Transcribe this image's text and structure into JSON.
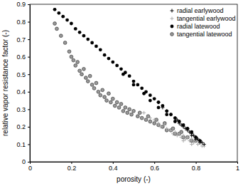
{
  "chart_data": {
    "type": "scatter",
    "x_label": "porosity (-)",
    "y_label": "relative vapor resistance factor (-)",
    "xlim": [
      0,
      1
    ],
    "xticks": [
      0,
      0.2,
      0.4,
      0.6,
      0.8,
      1
    ],
    "ylim": [
      0,
      0.9
    ],
    "yticks": [
      0,
      0.1,
      0.2,
      0.3,
      0.4,
      0.5,
      0.6,
      0.7,
      0.8,
      0.9
    ],
    "grid": false,
    "legend": "upper right",
    "series": [
      {
        "name": "radial earlywood",
        "color": "#000000",
        "marker": "plus",
        "x": [
          0.62,
          0.64,
          0.66,
          0.68,
          0.7,
          0.71,
          0.72,
          0.73,
          0.74,
          0.75,
          0.76,
          0.77,
          0.78,
          0.79,
          0.8,
          0.81,
          0.82,
          0.83,
          0.84,
          0.76,
          0.78,
          0.8,
          0.82
        ],
        "values": [
          0.34,
          0.31,
          0.29,
          0.27,
          0.25,
          0.24,
          0.22,
          0.21,
          0.2,
          0.19,
          0.18,
          0.17,
          0.16,
          0.15,
          0.14,
          0.13,
          0.12,
          0.11,
          0.1,
          0.19,
          0.15,
          0.13,
          0.11
        ]
      },
      {
        "name": "tangential earlywood",
        "color": "#aaaaaa",
        "marker": "plus",
        "x": [
          0.55,
          0.58,
          0.6,
          0.62,
          0.63,
          0.65,
          0.66,
          0.68,
          0.69,
          0.7,
          0.71,
          0.72,
          0.73,
          0.74,
          0.75,
          0.76,
          0.77,
          0.78,
          0.79,
          0.8,
          0.81,
          0.82,
          0.83,
          0.84,
          0.74,
          0.78
        ],
        "values": [
          0.28,
          0.25,
          0.24,
          0.22,
          0.2,
          0.21,
          0.19,
          0.18,
          0.16,
          0.17,
          0.15,
          0.16,
          0.14,
          0.15,
          0.13,
          0.14,
          0.12,
          0.13,
          0.11,
          0.12,
          0.1,
          0.11,
          0.09,
          0.09,
          0.12,
          0.1
        ]
      },
      {
        "name": "radial latewood",
        "color": "#000000",
        "marker": "circle",
        "x": [
          0.12,
          0.14,
          0.16,
          0.18,
          0.2,
          0.22,
          0.24,
          0.26,
          0.28,
          0.3,
          0.32,
          0.34,
          0.36,
          0.38,
          0.4,
          0.42,
          0.44,
          0.46,
          0.48,
          0.5,
          0.52,
          0.54,
          0.56,
          0.58,
          0.6,
          0.62,
          0.64,
          0.66,
          0.68,
          0.7,
          0.72,
          0.74,
          0.76,
          0.78,
          0.8,
          0.82,
          0.45,
          0.55,
          0.62,
          0.66,
          0.7,
          0.58,
          0.5
        ],
        "values": [
          0.87,
          0.85,
          0.83,
          0.81,
          0.79,
          0.76,
          0.74,
          0.72,
          0.7,
          0.68,
          0.66,
          0.64,
          0.61,
          0.59,
          0.57,
          0.55,
          0.53,
          0.51,
          0.49,
          0.46,
          0.44,
          0.42,
          0.4,
          0.38,
          0.36,
          0.34,
          0.32,
          0.29,
          0.27,
          0.25,
          0.23,
          0.21,
          0.19,
          0.17,
          0.14,
          0.12,
          0.5,
          0.39,
          0.31,
          0.27,
          0.23,
          0.35,
          0.44
        ]
      },
      {
        "name": "tangential latewood",
        "color": "#999999",
        "marker": "circle",
        "x": [
          0.12,
          0.13,
          0.15,
          0.17,
          0.19,
          0.2,
          0.21,
          0.22,
          0.23,
          0.24,
          0.25,
          0.26,
          0.27,
          0.28,
          0.29,
          0.3,
          0.31,
          0.32,
          0.33,
          0.34,
          0.35,
          0.36,
          0.37,
          0.38,
          0.39,
          0.4,
          0.41,
          0.42,
          0.43,
          0.44,
          0.45,
          0.46,
          0.47,
          0.48,
          0.49,
          0.5,
          0.52,
          0.53,
          0.54,
          0.56,
          0.57,
          0.58,
          0.6,
          0.61,
          0.62,
          0.64,
          0.65,
          0.66,
          0.68,
          0.69,
          0.7,
          0.72,
          0.73,
          0.74,
          0.76,
          0.78,
          0.8
        ],
        "values": [
          0.79,
          0.76,
          0.72,
          0.68,
          0.63,
          0.6,
          0.58,
          0.55,
          0.57,
          0.52,
          0.5,
          0.53,
          0.48,
          0.46,
          0.49,
          0.44,
          0.42,
          0.45,
          0.4,
          0.38,
          0.41,
          0.37,
          0.35,
          0.39,
          0.34,
          0.36,
          0.32,
          0.34,
          0.31,
          0.33,
          0.29,
          0.31,
          0.28,
          0.3,
          0.27,
          0.29,
          0.26,
          0.28,
          0.25,
          0.24,
          0.26,
          0.23,
          0.22,
          0.24,
          0.21,
          0.2,
          0.22,
          0.18,
          0.18,
          0.19,
          0.16,
          0.16,
          0.17,
          0.14,
          0.14,
          0.12,
          0.12
        ]
      }
    ]
  }
}
